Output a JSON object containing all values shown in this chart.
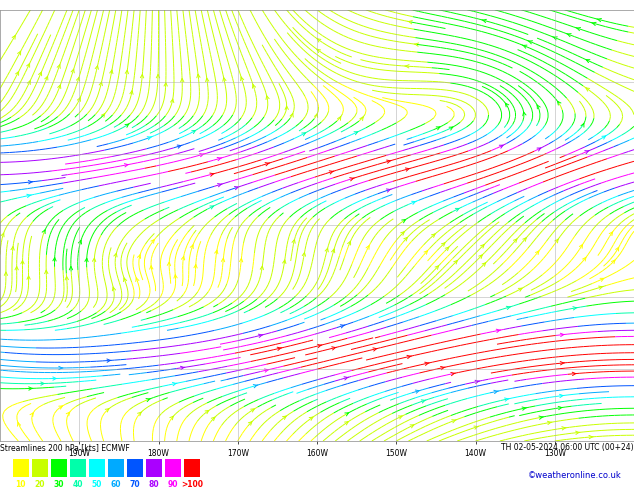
{
  "title_left": "Streamlines 200 hPa [kts] ECMWF",
  "title_right": "TH 02-05-2024 06:00 UTC (00+24)",
  "watermark": "©weatheronline.co.uk",
  "legend_values": [
    10,
    20,
    30,
    40,
    50,
    60,
    70,
    80,
    90
  ],
  "legend_label_gt100": ">100",
  "legend_colors": [
    "#ffff00",
    "#c8ff00",
    "#00ff00",
    "#00ffaa",
    "#00ffff",
    "#00aaff",
    "#0055ff",
    "#aa00ff",
    "#ff00ff"
  ],
  "legend_color_gt100": "#ff0000",
  "grid_color": "#aaaaaa",
  "background_color": "#ffffff",
  "fig_width": 6.34,
  "fig_height": 4.9,
  "dpi": 100,
  "lon_min": 160,
  "lon_max": 240,
  "lat_min": 20,
  "lat_max": 80,
  "grid_lons": [
    170,
    180,
    190,
    200,
    210,
    220,
    230
  ],
  "grid_lats": [
    30,
    40,
    50,
    60,
    70
  ]
}
